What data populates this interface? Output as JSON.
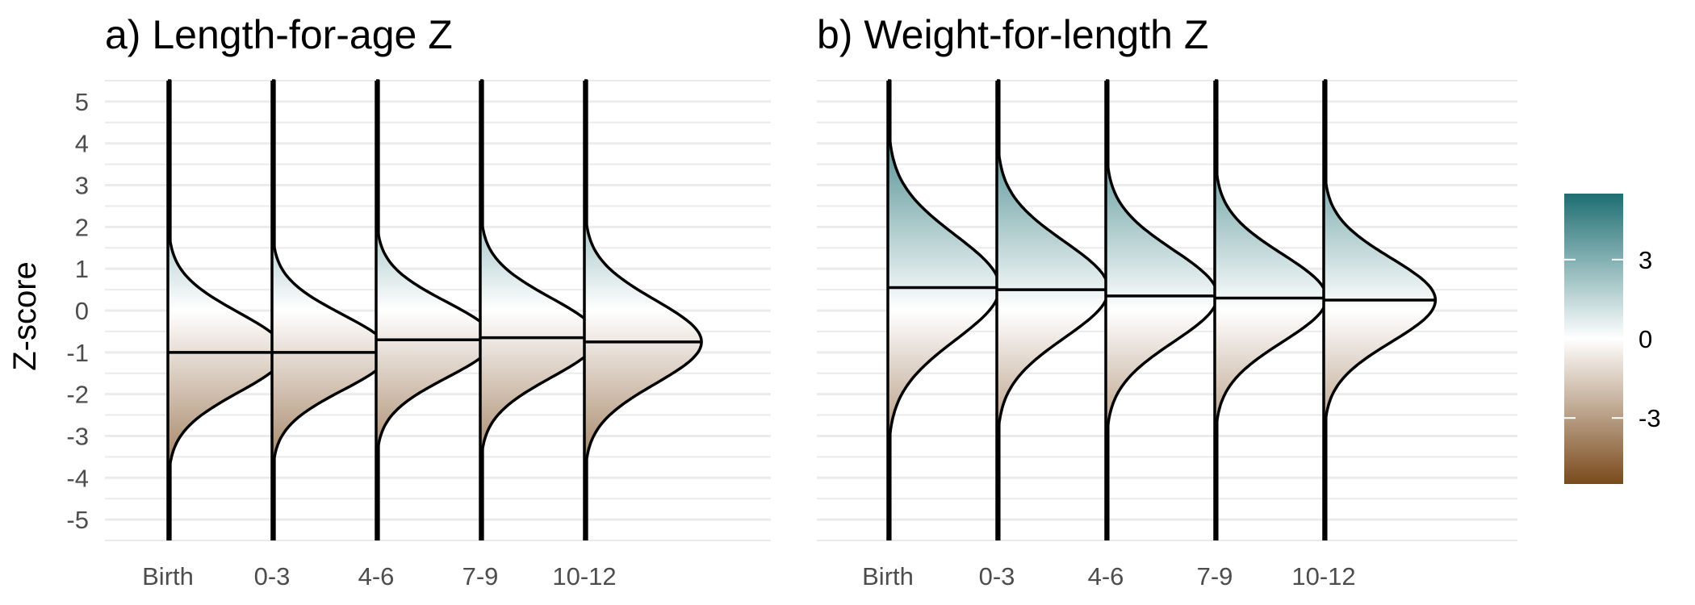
{
  "chart_data": {
    "type": "ridgeline",
    "ylabel": "Z-score",
    "ylim": [
      -5.5,
      5.5
    ],
    "y_ticks": [
      "5",
      "4",
      "3",
      "2",
      "1",
      "0",
      "-1",
      "-2",
      "-3",
      "-4",
      "-5"
    ],
    "y_tick_values": [
      5,
      4,
      3,
      2,
      1,
      0,
      -1,
      -2,
      -3,
      -4,
      -5
    ],
    "fill_gradient": {
      "low_color": "#7a4a1c",
      "mid_color": "#ffffff",
      "high_color": "#1d6e72",
      "limits": [
        -5.5,
        5.5
      ]
    },
    "legend": {
      "labels": [
        "3",
        "0",
        "-3"
      ],
      "values": [
        3,
        0,
        -3
      ],
      "placement": "right"
    },
    "panels": [
      {
        "title": "a) Length-for-age Z",
        "categories": [
          "Birth",
          "0-3",
          "4-6",
          "7-9",
          "10-12"
        ],
        "series": [
          {
            "median": -1.0,
            "sd": 0.95,
            "tail_density": 0.02
          },
          {
            "median": -1.0,
            "sd": 0.9,
            "tail_density": 0.02
          },
          {
            "median": -0.7,
            "sd": 0.9,
            "tail_density": 0.02
          },
          {
            "median": -0.65,
            "sd": 0.95,
            "tail_density": 0.02
          },
          {
            "median": -0.75,
            "sd": 1.0,
            "tail_density": 0.02
          }
        ]
      },
      {
        "title": "b) Weight-for-length Z",
        "categories": [
          "Birth",
          "0-3",
          "4-6",
          "7-9",
          "10-12"
        ],
        "series": [
          {
            "median": 0.55,
            "sd": 1.25,
            "tail_density": 0.02
          },
          {
            "median": 0.5,
            "sd": 1.15,
            "tail_density": 0.02
          },
          {
            "median": 0.35,
            "sd": 1.1,
            "tail_density": 0.02
          },
          {
            "median": 0.3,
            "sd": 1.05,
            "tail_density": 0.02
          },
          {
            "median": 0.25,
            "sd": 1.0,
            "tail_density": 0.02
          }
        ]
      }
    ]
  }
}
